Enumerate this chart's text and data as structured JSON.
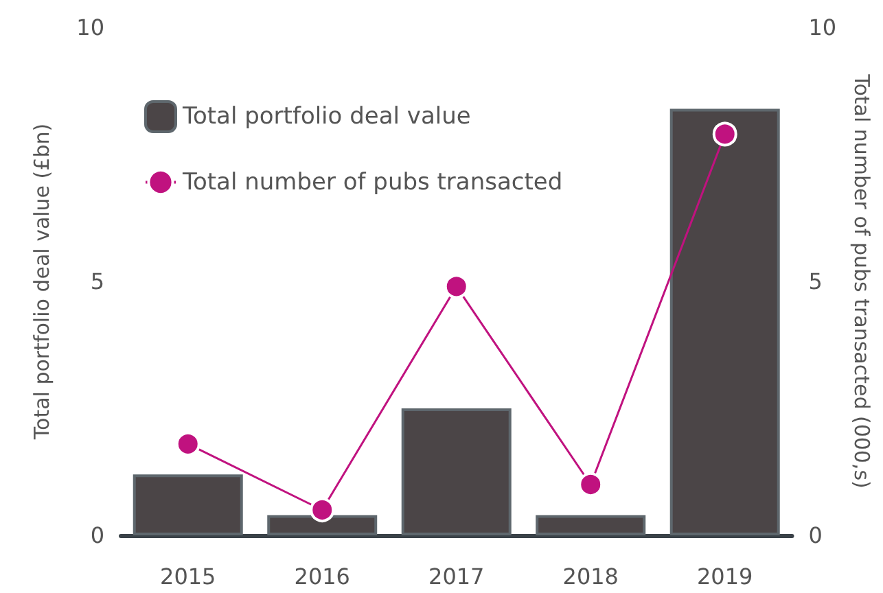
{
  "chart_data": {
    "type": "bar",
    "categories": [
      "2015",
      "2016",
      "2017",
      "2018",
      "2019"
    ],
    "ylabel": "Total portfolio deal value (£bn)",
    "y2label": "Total number of pubs transacted (000,s)",
    "series": [
      {
        "name": "Total portfolio deal value",
        "color": "#4b4547",
        "values": [
          1.2,
          0.4,
          2.5,
          0.4,
          8.4
        ]
      },
      {
        "name": "Total number of pubs transacted",
        "type": "line",
        "axis": "y2",
        "color": "#c0127f",
        "marker": "circle",
        "values": [
          1.8,
          0.5,
          4.9,
          1.0,
          7.9
        ]
      }
    ],
    "ylim": [
      0,
      10
    ],
    "yticks": [
      0,
      5,
      10
    ],
    "y2lim": [
      0,
      10
    ],
    "y2ticks": [
      0,
      5,
      10
    ],
    "grid": false,
    "legend": "top left"
  }
}
